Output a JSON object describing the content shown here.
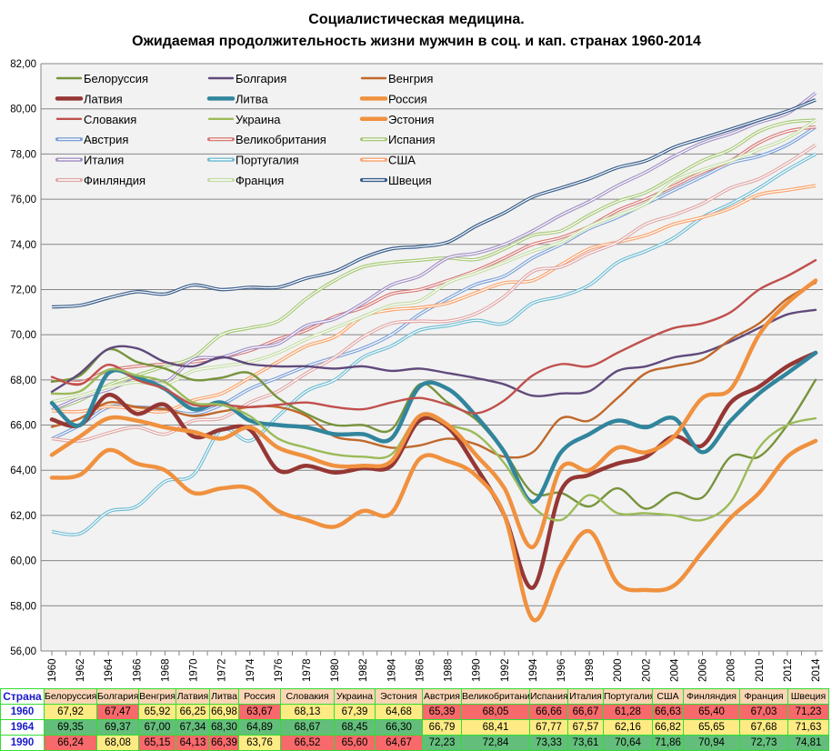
{
  "chart_data": {
    "type": "line",
    "title": "Социалистическая медицина.",
    "subtitle": "Ожидаемая продолжительность жизни мужчин в соц. и кап. странах 1960-2014",
    "xlabel": "",
    "ylabel": "",
    "ylim": [
      56,
      82
    ],
    "xlim": [
      1960,
      2014
    ],
    "y_ticks": [
      "56,00",
      "58,00",
      "60,00",
      "62,00",
      "64,00",
      "66,00",
      "68,00",
      "70,00",
      "72,00",
      "74,00",
      "76,00",
      "78,00",
      "80,00",
      "82,00"
    ],
    "x_ticks": [
      "1960",
      "1962",
      "1964",
      "1966",
      "1968",
      "1970",
      "1972",
      "1974",
      "1976",
      "1978",
      "1980",
      "1982",
      "1984",
      "1986",
      "1988",
      "1990",
      "1992",
      "1994",
      "1996",
      "1998",
      "2000",
      "2002",
      "2004",
      "2006",
      "2008",
      "2010",
      "2012",
      "2014"
    ],
    "grid": "horizontal",
    "legend_placement": "top-left inside",
    "x": [
      1960,
      1962,
      1964,
      1966,
      1968,
      1970,
      1972,
      1974,
      1976,
      1978,
      1980,
      1982,
      1984,
      1986,
      1988,
      1990,
      1992,
      1994,
      1996,
      1998,
      2000,
      2002,
      2004,
      2006,
      2008,
      2010,
      2012,
      2014
    ],
    "series": [
      {
        "name": "Белоруссия",
        "group": "soc",
        "color": "#77933c",
        "style": "thin",
        "values": [
          67.92,
          68.2,
          69.35,
          68.8,
          68.5,
          68.0,
          68.1,
          68.3,
          67.2,
          66.5,
          66.0,
          66.0,
          65.8,
          67.8,
          67.0,
          66.24,
          64.8,
          63.0,
          63.0,
          62.4,
          63.2,
          62.3,
          63.0,
          62.8,
          64.6,
          64.6,
          66.0,
          68.0
        ]
      },
      {
        "name": "Болгария",
        "group": "soc",
        "color": "#604a7b",
        "style": "thin",
        "values": [
          67.47,
          68.3,
          69.37,
          69.4,
          68.8,
          68.6,
          69.0,
          68.7,
          68.6,
          68.6,
          68.5,
          68.6,
          68.4,
          68.5,
          68.3,
          68.08,
          67.8,
          67.3,
          67.4,
          67.5,
          68.4,
          68.6,
          69.0,
          69.2,
          69.7,
          70.3,
          70.9,
          71.1
        ]
      },
      {
        "name": "Венгрия",
        "group": "soc",
        "color": "#c0682b",
        "style": "thin",
        "values": [
          65.92,
          66.3,
          67.0,
          66.8,
          66.7,
          66.4,
          66.6,
          66.8,
          66.8,
          66.4,
          65.5,
          65.3,
          65.0,
          65.1,
          65.4,
          65.15,
          64.6,
          64.8,
          66.3,
          66.2,
          67.2,
          68.3,
          68.6,
          68.9,
          69.8,
          70.5,
          71.6,
          72.3
        ]
      },
      {
        "name": "Латвия",
        "group": "soc",
        "color": "#953735",
        "style": "thick",
        "values": [
          66.25,
          66.0,
          67.34,
          66.5,
          66.9,
          65.5,
          65.8,
          65.8,
          64.0,
          64.2,
          63.9,
          64.1,
          64.2,
          66.2,
          65.9,
          64.13,
          62.0,
          58.8,
          63.1,
          63.8,
          64.3,
          64.6,
          65.5,
          65.1,
          67.0,
          67.7,
          68.6,
          69.2
        ]
      },
      {
        "name": "Литва",
        "group": "soc",
        "color": "#31859c",
        "style": "thick",
        "values": [
          66.98,
          66.0,
          68.3,
          68.1,
          67.6,
          66.7,
          67.0,
          66.2,
          66.0,
          65.9,
          65.6,
          65.6,
          65.4,
          67.7,
          67.6,
          66.39,
          64.8,
          62.6,
          64.8,
          65.6,
          66.2,
          65.9,
          66.3,
          64.8,
          66.2,
          67.4,
          68.3,
          69.2
        ]
      },
      {
        "name": "Россия",
        "group": "soc",
        "color": "#f0913f",
        "style": "thick",
        "values": [
          63.67,
          63.8,
          64.89,
          64.3,
          64.0,
          63.0,
          63.2,
          63.2,
          62.2,
          61.8,
          61.5,
          62.2,
          62.1,
          64.5,
          64.4,
          63.76,
          62.0,
          57.4,
          59.8,
          61.3,
          59.0,
          58.7,
          58.9,
          60.4,
          61.9,
          63.0,
          64.6,
          65.3
        ]
      },
      {
        "name": "Словакия",
        "group": "soc",
        "color": "#c0504d",
        "style": "thin",
        "values": [
          68.13,
          67.8,
          68.67,
          68.0,
          67.6,
          66.9,
          66.9,
          66.8,
          66.9,
          67.0,
          66.8,
          66.7,
          67.0,
          67.2,
          66.9,
          66.52,
          67.1,
          68.2,
          68.7,
          68.6,
          69.2,
          69.8,
          70.3,
          70.5,
          71.0,
          72.0,
          72.6,
          73.3
        ]
      },
      {
        "name": "Украина",
        "group": "soc",
        "color": "#9bbb59",
        "style": "thin",
        "values": [
          67.39,
          67.5,
          68.45,
          68.2,
          67.9,
          67.0,
          66.9,
          66.4,
          65.4,
          65.0,
          64.7,
          64.6,
          64.7,
          66.4,
          66.0,
          65.6,
          64.3,
          62.4,
          61.8,
          62.9,
          62.1,
          62.1,
          62.0,
          61.8,
          62.6,
          65.0,
          66.0,
          66.3
        ]
      },
      {
        "name": "Эстония",
        "group": "soc",
        "color": "#f0913f",
        "style": "thick",
        "values": [
          64.68,
          65.5,
          66.3,
          66.2,
          65.9,
          65.7,
          65.4,
          65.9,
          65.0,
          64.6,
          64.2,
          64.2,
          64.4,
          66.4,
          66.0,
          64.67,
          63.2,
          60.6,
          64.1,
          64.0,
          65.0,
          64.8,
          65.5,
          67.2,
          67.6,
          70.0,
          71.4,
          72.4
        ]
      },
      {
        "name": "Австрия",
        "group": "cap",
        "color": "#7da1d8",
        "style": "double",
        "values": [
          65.39,
          66.0,
          66.79,
          66.8,
          66.7,
          66.5,
          66.9,
          67.6,
          68.1,
          68.6,
          69.0,
          69.4,
          70.0,
          70.9,
          71.6,
          72.23,
          72.6,
          73.4,
          74.0,
          74.7,
          75.2,
          75.8,
          76.4,
          77.0,
          77.6,
          77.9,
          78.4,
          79.2
        ]
      },
      {
        "name": "Великобритания",
        "group": "cap",
        "color": "#d87b79",
        "style": "double",
        "values": [
          68.05,
          67.9,
          68.41,
          68.6,
          68.7,
          68.8,
          69.0,
          69.3,
          69.8,
          70.2,
          70.8,
          71.2,
          71.8,
          72.0,
          72.4,
          72.84,
          73.4,
          74.0,
          74.3,
          74.8,
          75.5,
          76.0,
          76.6,
          77.2,
          77.7,
          78.5,
          79.0,
          79.2
        ]
      },
      {
        "name": "Испания",
        "group": "cap",
        "color": "#a9c97a",
        "style": "double",
        "values": [
          66.66,
          67.1,
          67.77,
          68.2,
          68.6,
          69.0,
          70.0,
          70.3,
          70.6,
          71.6,
          72.4,
          73.0,
          73.2,
          73.3,
          73.4,
          73.33,
          73.8,
          74.4,
          74.6,
          75.3,
          75.9,
          76.3,
          77.0,
          77.7,
          78.2,
          79.0,
          79.4,
          79.5
        ]
      },
      {
        "name": "Италия",
        "group": "cap",
        "color": "#a391c4",
        "style": "double",
        "values": [
          66.67,
          67.2,
          67.57,
          68.0,
          67.9,
          68.9,
          69.0,
          69.4,
          69.6,
          70.4,
          70.7,
          71.4,
          72.2,
          72.6,
          73.4,
          73.61,
          74.0,
          74.6,
          75.3,
          75.9,
          76.6,
          77.2,
          77.9,
          78.5,
          78.9,
          79.4,
          79.8,
          80.7
        ]
      },
      {
        "name": "Португалия",
        "group": "cap",
        "color": "#72bdd3",
        "style": "double",
        "values": [
          61.28,
          61.2,
          62.16,
          62.4,
          63.5,
          63.8,
          65.8,
          65.3,
          66.4,
          67.5,
          68.0,
          69.0,
          69.5,
          70.2,
          70.4,
          70.64,
          70.5,
          71.4,
          71.7,
          72.2,
          73.2,
          73.7,
          74.3,
          75.2,
          75.8,
          76.5,
          77.3,
          78.0
        ]
      },
      {
        "name": "США",
        "group": "cap",
        "color": "#f9a46e",
        "style": "double",
        "values": [
          66.63,
          66.6,
          66.82,
          66.7,
          66.6,
          67.1,
          67.4,
          68.1,
          68.8,
          69.5,
          69.9,
          70.8,
          71.1,
          71.2,
          71.4,
          71.86,
          72.3,
          72.4,
          73.1,
          73.8,
          74.1,
          74.4,
          74.9,
          75.2,
          75.6,
          76.2,
          76.4,
          76.6
        ]
      },
      {
        "name": "Финляндия",
        "group": "cap",
        "color": "#e0a9a8",
        "style": "double",
        "values": [
          65.4,
          65.3,
          65.65,
          65.9,
          65.6,
          66.2,
          66.3,
          67.0,
          67.5,
          68.3,
          69.0,
          69.9,
          70.5,
          70.6,
          70.6,
          70.94,
          71.7,
          72.8,
          73.0,
          73.6,
          74.1,
          74.9,
          75.3,
          75.8,
          76.5,
          76.9,
          77.6,
          78.4
        ]
      },
      {
        "name": "Франция",
        "group": "cap",
        "color": "#c5dca6",
        "style": "double",
        "values": [
          67.03,
          67.3,
          67.68,
          67.9,
          67.8,
          68.4,
          68.6,
          68.8,
          69.2,
          69.8,
          70.3,
          70.8,
          71.3,
          71.5,
          72.3,
          72.73,
          73.2,
          73.7,
          74.1,
          74.8,
          75.3,
          75.8,
          76.8,
          77.3,
          77.7,
          78.2,
          78.7,
          79.5
        ]
      },
      {
        "name": "Швеция",
        "group": "cap",
        "color": "#385d8a",
        "style": "double",
        "values": [
          71.23,
          71.3,
          71.63,
          71.9,
          71.8,
          72.2,
          72.0,
          72.1,
          72.1,
          72.5,
          72.8,
          73.4,
          73.8,
          73.9,
          74.1,
          74.81,
          75.4,
          76.1,
          76.5,
          76.9,
          77.4,
          77.7,
          78.3,
          78.7,
          79.1,
          79.5,
          79.9,
          80.4
        ]
      }
    ]
  },
  "table": {
    "corner": "Страна",
    "colors": {
      "red": "#f8696b",
      "yellow": "#ffeb84",
      "green": "#63be7b",
      "header": "#fbd5b5",
      "border": "#33dd33"
    },
    "countries": [
      "Белоруссия",
      "Болгария",
      "Венгрия",
      "Латвия",
      "Литва",
      "Россия",
      "Словакия",
      "Украина",
      "Эстония",
      "Австрия",
      "Великобритания",
      "Испания",
      "Италия",
      "Португалия",
      "США",
      "Финляндия",
      "Франция",
      "Швеция"
    ],
    "rows": [
      {
        "year": "1960",
        "values": [
          "67,92",
          "67,47",
          "65,92",
          "66,25",
          "66,98",
          "63,67",
          "68,13",
          "67,39",
          "64,68",
          "65,39",
          "68,05",
          "66,66",
          "66,67",
          "61,28",
          "66,63",
          "65,40",
          "67,03",
          "71,23"
        ],
        "shade": [
          "yellow",
          "red",
          "yellow",
          "yellow",
          "yellow",
          "red",
          "yellow",
          "yellow",
          "yellow",
          "red",
          "red",
          "red",
          "red",
          "red",
          "red",
          "red",
          "red",
          "red"
        ]
      },
      {
        "year": "1964",
        "values": [
          "69,35",
          "69,37",
          "67,00",
          "67,34",
          "68,30",
          "64,89",
          "68,67",
          "68,45",
          "66,30",
          "66,79",
          "68,41",
          "67,77",
          "67,57",
          "62,16",
          "66,82",
          "65,65",
          "67,68",
          "71,63"
        ],
        "shade": [
          "green",
          "green",
          "green",
          "green",
          "green",
          "green",
          "green",
          "green",
          "green",
          "yellow",
          "yellow",
          "yellow",
          "yellow",
          "yellow",
          "yellow",
          "yellow",
          "yellow",
          "yellow"
        ]
      },
      {
        "year": "1990",
        "values": [
          "66,24",
          "68,08",
          "65,15",
          "64,13",
          "66,39",
          "63,76",
          "66,52",
          "65,60",
          "64,67",
          "72,23",
          "72,84",
          "73,33",
          "73,61",
          "70,64",
          "71,86",
          "70,94",
          "72,73",
          "74,81"
        ],
        "shade": [
          "red",
          "yellow",
          "red",
          "red",
          "red",
          "yellow",
          "red",
          "red",
          "red",
          "green",
          "green",
          "green",
          "green",
          "green",
          "green",
          "green",
          "green",
          "green"
        ]
      }
    ]
  }
}
